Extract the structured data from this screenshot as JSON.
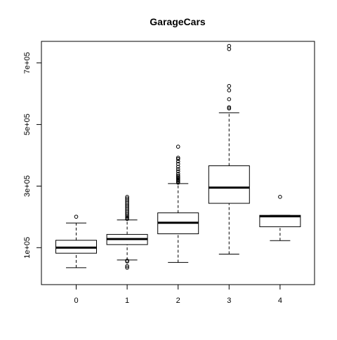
{
  "chart_data": {
    "type": "boxplot",
    "title": "GarageCars",
    "xlabel": "",
    "ylabel": "",
    "categories": [
      "0",
      "1",
      "2",
      "3",
      "4"
    ],
    "ylim": [
      -20000,
      770000
    ],
    "y_ticks": [
      100000,
      300000,
      500000,
      700000
    ],
    "y_tick_labels": [
      "1e+05",
      "3e+05",
      "5e+05",
      "7e+05"
    ],
    "grid": false,
    "boxes": [
      {
        "category": "0",
        "whisker_low": 34900,
        "q1": 82000,
        "median": 100000,
        "q3": 124000,
        "whisker_high": 180000,
        "outliers": [
          200500
        ]
      },
      {
        "category": "1",
        "whisker_low": 60000,
        "q1": 110000,
        "median": 128000,
        "q3": 143000,
        "whisker_high": 190000,
        "outliers": [
          35000,
          40000,
          55000,
          58000,
          193000,
          197000,
          201000,
          205000,
          210000,
          215000,
          220000,
          225000,
          230000,
          235000,
          240000,
          245000,
          250000,
          255000,
          260000,
          265000
        ]
      },
      {
        "category": "2",
        "whisker_low": 52000,
        "q1": 145000,
        "median": 181000,
        "q3": 213000,
        "whisker_high": 308000,
        "outliers": [
          311000,
          315000,
          318000,
          321000,
          324000,
          327000,
          330000,
          334000,
          340000,
          348000,
          355000,
          363000,
          372000,
          380000,
          388000,
          392000,
          428000
        ]
      },
      {
        "category": "3",
        "whisker_low": 79000,
        "q1": 244000,
        "median": 295000,
        "q3": 366000,
        "whisker_high": 538000,
        "outliers": [
          552000,
          556000,
          582000,
          611000,
          625000,
          745000,
          755000
        ]
      },
      {
        "category": "4",
        "whisker_low": 123000,
        "q1": 168000,
        "median": 202000,
        "q3": 205000,
        "whisker_high": 205000,
        "outliers": [
          265000
        ]
      }
    ]
  }
}
